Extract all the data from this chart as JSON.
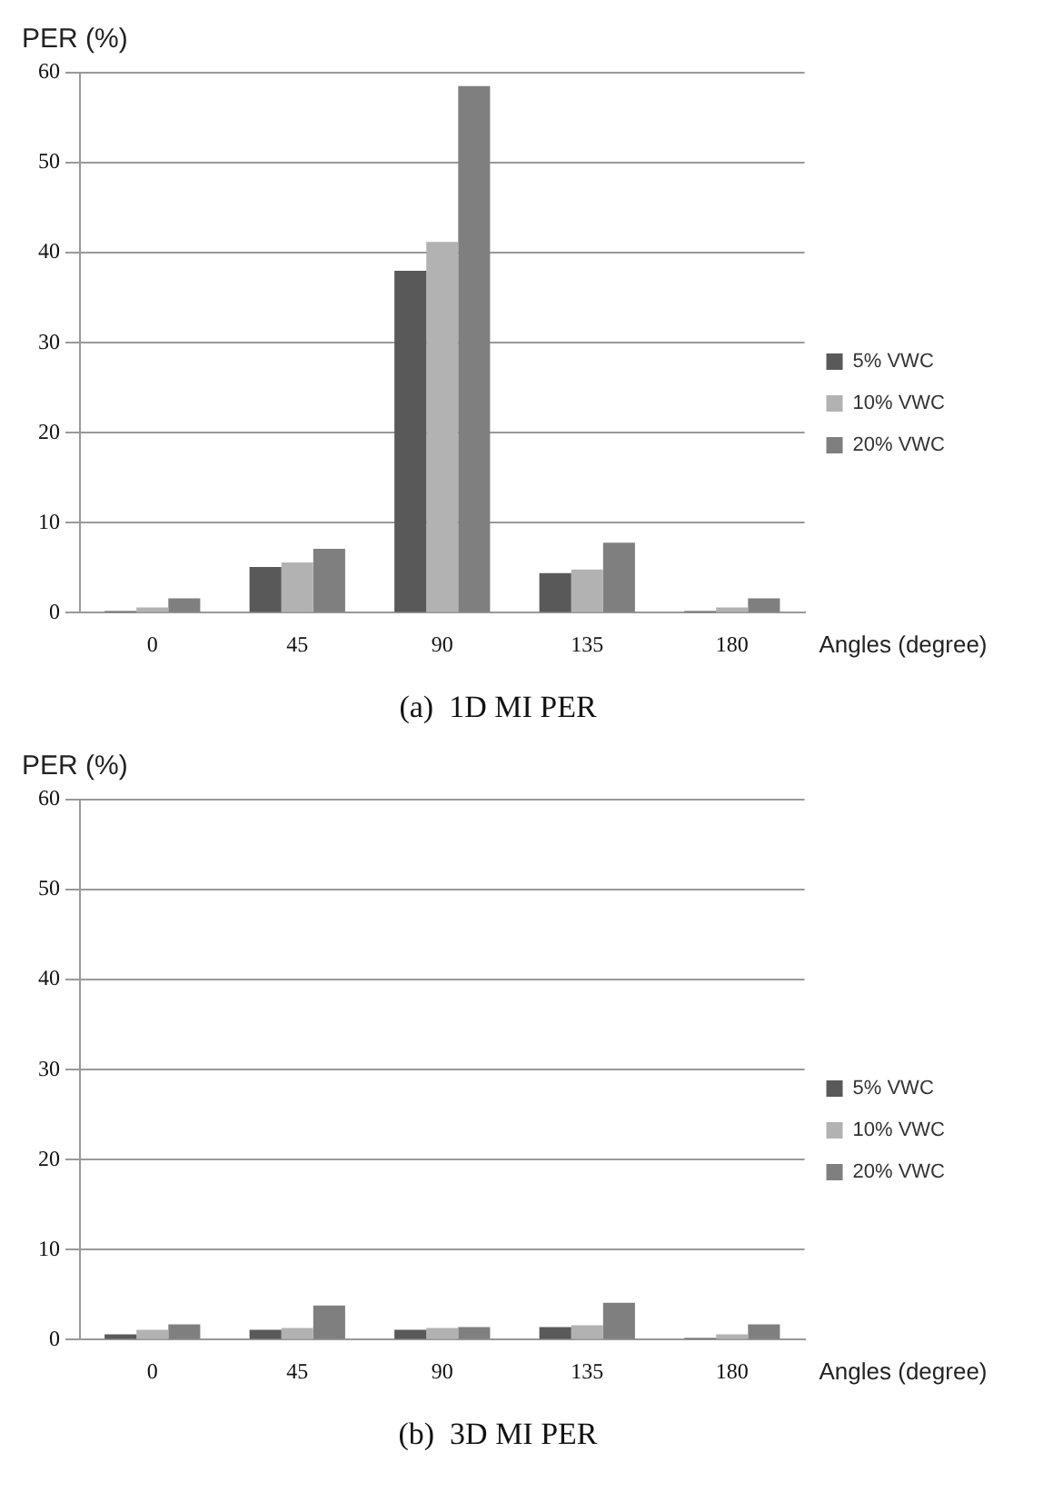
{
  "chart_data": [
    {
      "type": "bar",
      "title": "(a)  1D MI PER",
      "ylabel": "PER (%)",
      "xlabel": "Angles (degree)",
      "categories": [
        "0",
        "45",
        "90",
        "135",
        "180"
      ],
      "series": [
        {
          "name": "5% VWC",
          "color": "#595959",
          "values": [
            0.2,
            5.1,
            38,
            4.4,
            0.2
          ]
        },
        {
          "name": "10% VWC",
          "color": "#b2b2b2",
          "values": [
            0.6,
            5.6,
            41.2,
            4.8,
            0.6
          ]
        },
        {
          "name": "20% VWC",
          "color": "#7f7f7f",
          "values": [
            1.6,
            7.1,
            58.5,
            7.8,
            1.6
          ]
        }
      ],
      "ylim": [
        0,
        60
      ],
      "yticks": [
        0,
        10,
        20,
        30,
        40,
        50,
        60
      ],
      "grid": "y",
      "legend": "right"
    },
    {
      "type": "bar",
      "title": "(b)  3D MI PER",
      "ylabel": "PER (%)",
      "xlabel": "Angles (degree)",
      "categories": [
        "0",
        "45",
        "90",
        "135",
        "180"
      ],
      "series": [
        {
          "name": "5% VWC",
          "color": "#595959",
          "values": [
            0.6,
            1.1,
            1.1,
            1.4,
            0.2
          ]
        },
        {
          "name": "10% VWC",
          "color": "#b2b2b2",
          "values": [
            1.1,
            1.3,
            1.3,
            1.6,
            0.6
          ]
        },
        {
          "name": "20% VWC",
          "color": "#7f7f7f",
          "values": [
            1.7,
            3.8,
            1.4,
            4.1,
            1.7
          ]
        }
      ],
      "ylim": [
        0,
        60
      ],
      "yticks": [
        0,
        10,
        20,
        30,
        40,
        50,
        60
      ],
      "grid": "y",
      "legend": "right"
    }
  ]
}
